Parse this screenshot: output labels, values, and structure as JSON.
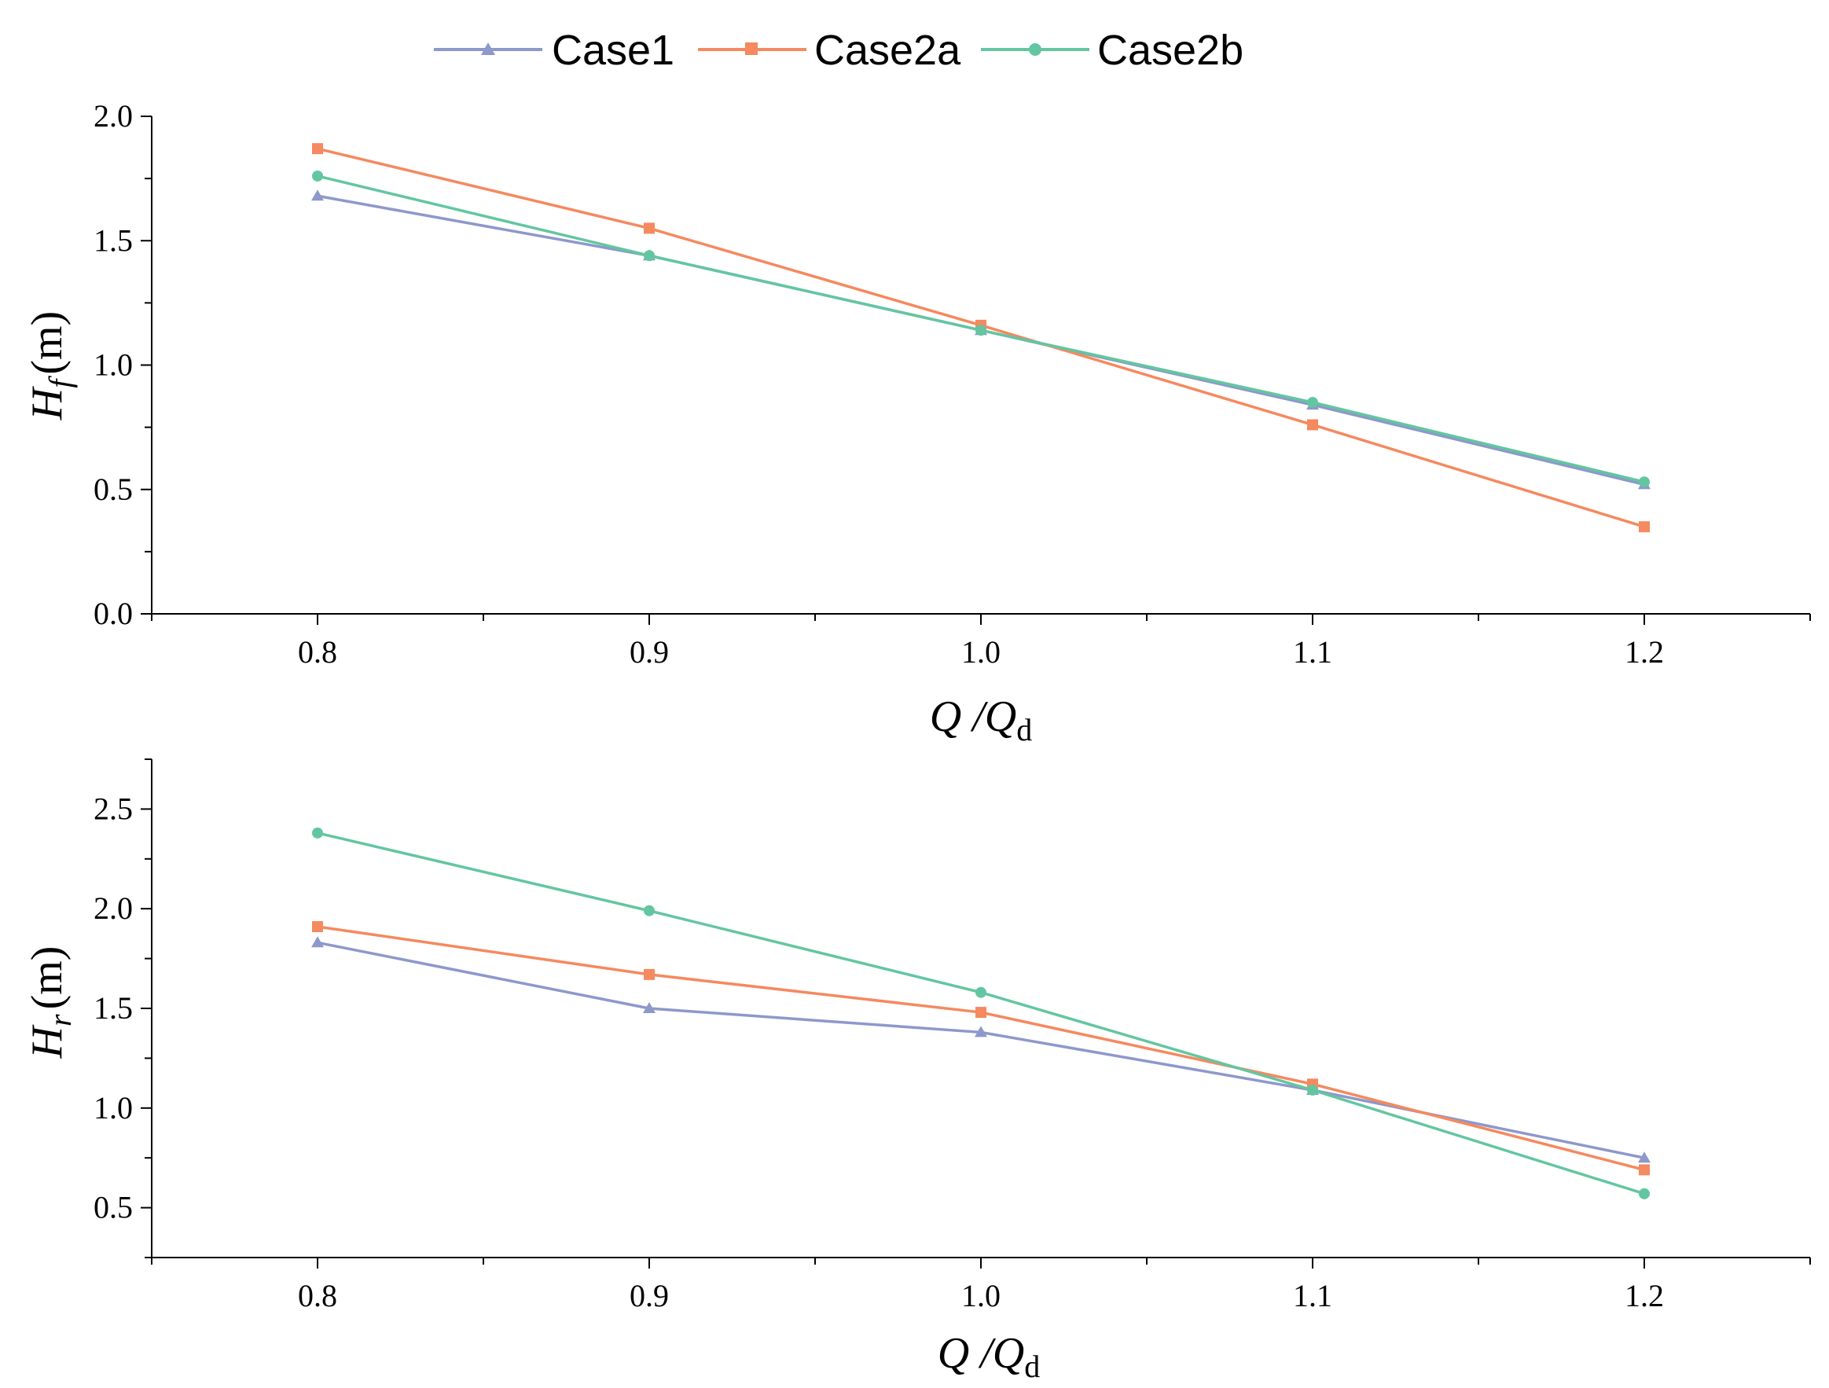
{
  "legend": [
    {
      "name": "Case1",
      "color": "#8d98cb",
      "marker": "triangle"
    },
    {
      "name": "Case2a",
      "color": "#f5895f",
      "marker": "square"
    },
    {
      "name": "Case2b",
      "color": "#63c6a0",
      "marker": "circle"
    }
  ],
  "chart_data": [
    {
      "type": "line",
      "title": "",
      "xlabel": {
        "main": "Q /Q",
        "sub": "d"
      },
      "ylabel": {
        "main": "H",
        "sub": "f",
        "unit": "(m)"
      },
      "x": [
        0.8,
        0.9,
        1.0,
        1.1,
        1.2
      ],
      "xtick_labels": [
        "0.8",
        "0.9",
        "1.0",
        "1.1",
        "1.2"
      ],
      "xlim": [
        0.75,
        1.25
      ],
      "ylim": [
        0.0,
        2.0
      ],
      "ytick_labels": [
        "0.0",
        "0.5",
        "1.0",
        "1.5",
        "2.0"
      ],
      "grid": false,
      "series": [
        {
          "name": "Case1",
          "values": [
            1.68,
            1.44,
            1.14,
            0.84,
            0.52
          ]
        },
        {
          "name": "Case2a",
          "values": [
            1.87,
            1.55,
            1.16,
            0.76,
            0.35
          ]
        },
        {
          "name": "Case2b",
          "values": [
            1.76,
            1.44,
            1.14,
            0.85,
            0.53
          ]
        }
      ]
    },
    {
      "type": "line",
      "title": "",
      "xlabel": {
        "main": "Q /Q",
        "sub": "d"
      },
      "ylabel": {
        "main": "H",
        "sub": "r",
        "unit": "(m)"
      },
      "x": [
        0.8,
        0.9,
        1.0,
        1.1,
        1.2
      ],
      "xtick_labels": [
        "0.8",
        "0.9",
        "1.0",
        "1.1",
        "1.2"
      ],
      "xlim": [
        0.75,
        1.25
      ],
      "ylim": [
        0.25,
        2.75
      ],
      "ytick_labels": [
        "0.5",
        "1.0",
        "1.5",
        "2.0",
        "2.5"
      ],
      "grid": false,
      "series": [
        {
          "name": "Case1",
          "values": [
            1.83,
            1.5,
            1.38,
            1.09,
            0.75
          ]
        },
        {
          "name": "Case2a",
          "values": [
            1.91,
            1.67,
            1.48,
            1.12,
            0.69
          ]
        },
        {
          "name": "Case2b",
          "values": [
            2.38,
            1.99,
            1.58,
            1.09,
            0.57
          ]
        }
      ]
    }
  ]
}
